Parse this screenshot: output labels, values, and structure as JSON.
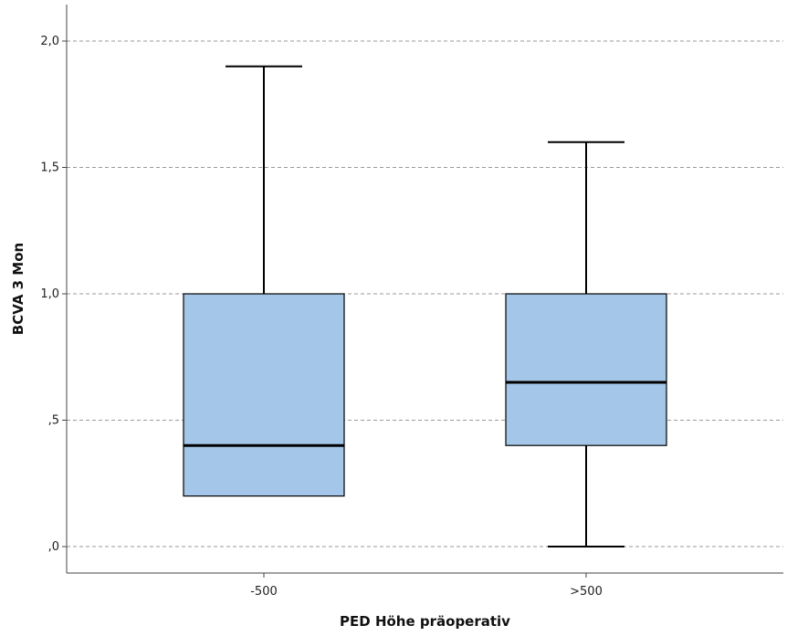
{
  "chart_data": {
    "type": "box",
    "title": "",
    "xlabel": "PED Höhe präoperativ",
    "ylabel": "BCVA 3 Mon",
    "categories": [
      "-500",
      ">500"
    ],
    "boxes": [
      {
        "category": "-500",
        "whisker_low": 0.2,
        "q1": 0.2,
        "median": 0.4,
        "q3": 1.0,
        "whisker_high": 1.9
      },
      {
        "category": ">500",
        "whisker_low": 0.0,
        "q1": 0.4,
        "median": 0.65,
        "q3": 1.0,
        "whisker_high": 1.6
      }
    ],
    "ylim": [
      -0.1,
      2.1
    ],
    "yticks": [
      0.0,
      0.5,
      1.0,
      1.5,
      2.0
    ],
    "ytick_labels": [
      ",0",
      ",5",
      "1,0",
      "1,5",
      "2,0"
    ],
    "grid": true,
    "colors": {
      "box_fill": "#a4c6e8",
      "line": "#000000",
      "grid": "#9a9a9a",
      "axis": "#444444"
    }
  }
}
